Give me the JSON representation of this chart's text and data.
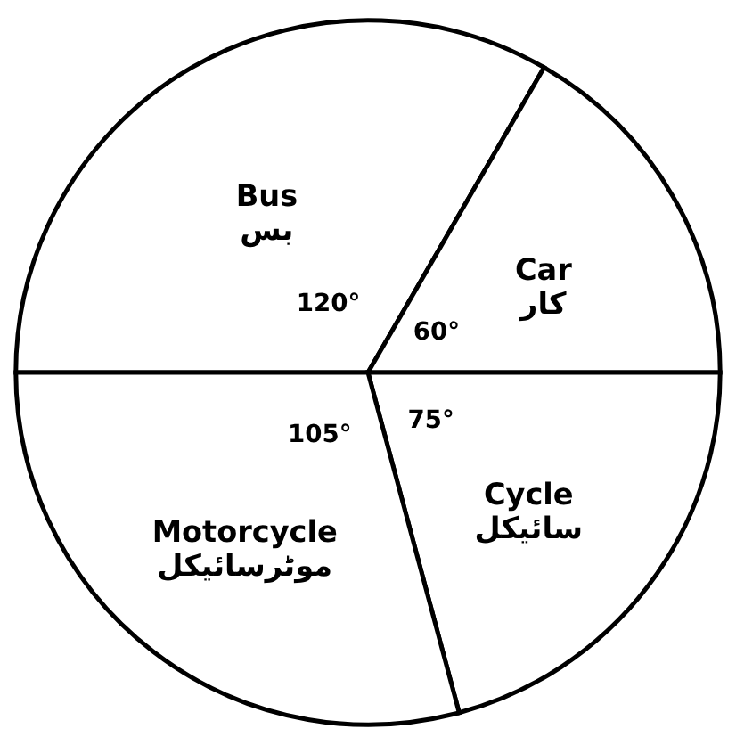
{
  "chart_data": {
    "type": "pie",
    "categories": [
      "Bus\nبس",
      "Car\nکار",
      "Cycle\nسائیکل",
      "Motorcycle\nموٹرسائیکل"
    ],
    "values": [
      120,
      60,
      75,
      105
    ],
    "colors": [
      "#ffffff",
      "#ffffff",
      "#ffffff",
      "#ffffff"
    ],
    "value_labels": [
      "120°",
      "60°",
      "75°",
      "105°"
    ],
    "legend": false
  }
}
